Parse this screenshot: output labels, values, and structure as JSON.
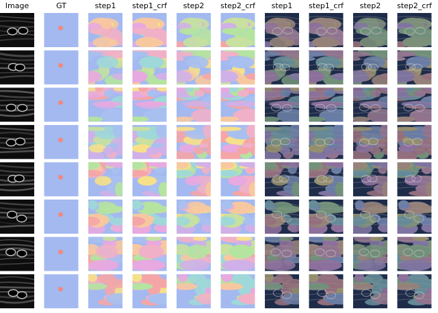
{
  "columns": [
    "Image",
    "GT",
    "step1",
    "step1_crf",
    "step2",
    "step2_crf",
    "step1",
    "step1_crf",
    "step2",
    "step2_crf"
  ]
}
